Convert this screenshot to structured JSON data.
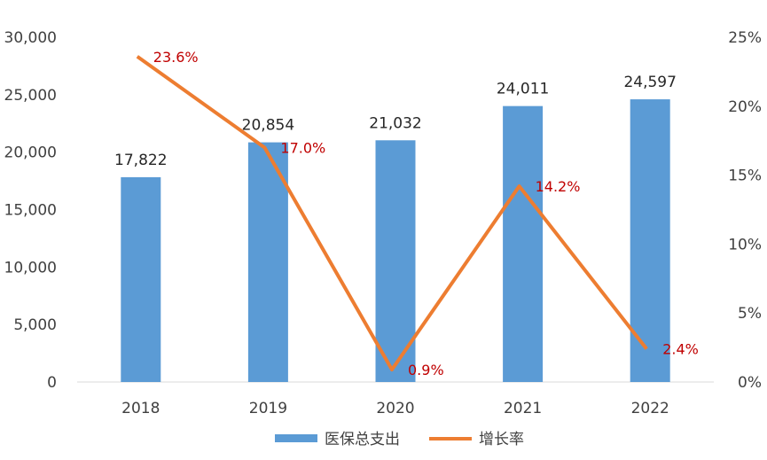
{
  "chart_data": {
    "type": "bar+line",
    "categories": [
      "2018",
      "2019",
      "2020",
      "2021",
      "2022"
    ],
    "series": [
      {
        "name": "医保总支出",
        "type": "bar",
        "axis": "left",
        "values": [
          17822,
          20854,
          21032,
          24011,
          24597
        ],
        "labels": [
          "17,822",
          "20,854",
          "21,032",
          "24,011",
          "24,597"
        ],
        "color": "#5b9bd5"
      },
      {
        "name": "增长率",
        "type": "line",
        "axis": "right",
        "values": [
          23.6,
          17.0,
          0.9,
          14.2,
          2.4
        ],
        "labels": [
          "23.6%",
          "17.0%",
          "0.9%",
          "14.2%",
          "2.4%"
        ],
        "color": "#ed7d31",
        "label_color": "#c00000"
      }
    ],
    "y_left": {
      "lim": [
        0,
        30000
      ],
      "ticks": [
        0,
        5000,
        10000,
        15000,
        20000,
        25000,
        30000
      ],
      "tick_labels": [
        "0",
        "5,000",
        "10,000",
        "15,000",
        "20,000",
        "25,000",
        "30,000"
      ]
    },
    "y_right": {
      "lim": [
        0,
        25
      ],
      "ticks": [
        0,
        5,
        10,
        15,
        20,
        25
      ],
      "tick_labels": [
        "0%",
        "5%",
        "10%",
        "15%",
        "20%",
        "25%"
      ]
    },
    "grid": false,
    "legend": "bottom"
  }
}
